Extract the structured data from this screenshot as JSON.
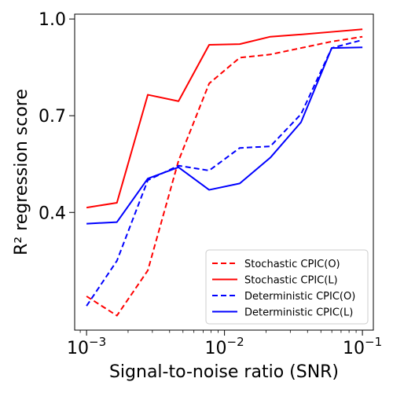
{
  "chart_data": {
    "type": "line",
    "xlabel": "Signal-to-noise ratio (SNR)",
    "ylabel": "R² regression score",
    "xscale": "log",
    "xlim": [
      0.00082,
      0.12
    ],
    "ylim": [
      0.035,
      1.015
    ],
    "xticks": [
      {
        "value": 0.001,
        "base": "10",
        "exp": "−3"
      },
      {
        "value": 0.01,
        "base": "10",
        "exp": "−2"
      },
      {
        "value": 0.1,
        "base": "10",
        "exp": "−1"
      }
    ],
    "yticks": [
      {
        "value": 0.4,
        "label": "0.4"
      },
      {
        "value": 0.7,
        "label": "0.7"
      },
      {
        "value": 1.0,
        "label": "1.0"
      }
    ],
    "grid": false,
    "legend_position": "lower-right",
    "x": [
      0.001,
      0.00166,
      0.00278,
      0.00464,
      0.00774,
      0.0129,
      0.0215,
      0.0359,
      0.0599,
      0.1
    ],
    "series": [
      {
        "name": "Stochastic CPIC(O)",
        "color": "#ff0000",
        "dash": "dashed",
        "values": [
          0.14,
          0.08,
          0.22,
          0.56,
          0.8,
          0.88,
          0.89,
          0.91,
          0.93,
          0.945
        ]
      },
      {
        "name": "Stochastic CPIC(L)",
        "color": "#ff0000",
        "dash": "solid",
        "values": [
          0.415,
          0.43,
          0.765,
          0.745,
          0.92,
          0.922,
          0.945,
          0.952,
          0.96,
          0.968
        ]
      },
      {
        "name": "Deterministic CPIC(O)",
        "color": "#0000ff",
        "dash": "dashed",
        "values": [
          0.11,
          0.25,
          0.5,
          0.545,
          0.53,
          0.6,
          0.605,
          0.705,
          0.91,
          0.935
        ]
      },
      {
        "name": "Deterministic CPIC(L)",
        "color": "#0000ff",
        "dash": "solid",
        "values": [
          0.365,
          0.37,
          0.505,
          0.54,
          0.47,
          0.49,
          0.57,
          0.68,
          0.91,
          0.912
        ]
      }
    ]
  }
}
